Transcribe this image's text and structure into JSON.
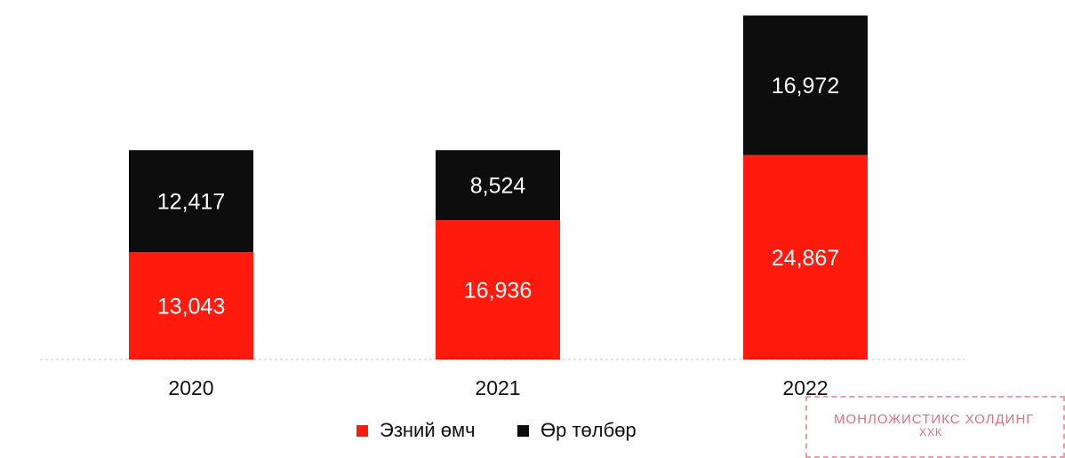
{
  "chart_data": {
    "type": "bar",
    "stacked": true,
    "categories": [
      "2020",
      "2021",
      "2022"
    ],
    "series": [
      {
        "name": "Эзний өмч",
        "color": "#ff1a0e",
        "values": [
          13043,
          16936,
          24867
        ],
        "labels": [
          "13,043",
          "16,936",
          "24,867"
        ]
      },
      {
        "name": "Өр төлбөр",
        "color": "#0d0d0d",
        "values": [
          12417,
          8524,
          16972
        ],
        "labels": [
          "12,417",
          "8,524",
          "16,972"
        ]
      }
    ],
    "title": "",
    "xlabel": "",
    "ylabel": "",
    "ylim": [
      0,
      42000
    ],
    "grid": false,
    "legend_position": "bottom"
  },
  "stamp": {
    "line1": "МОНЛОЖИСТИКС ХОЛДИНГ",
    "line2": "ХХК",
    "color": "#e0707e"
  }
}
